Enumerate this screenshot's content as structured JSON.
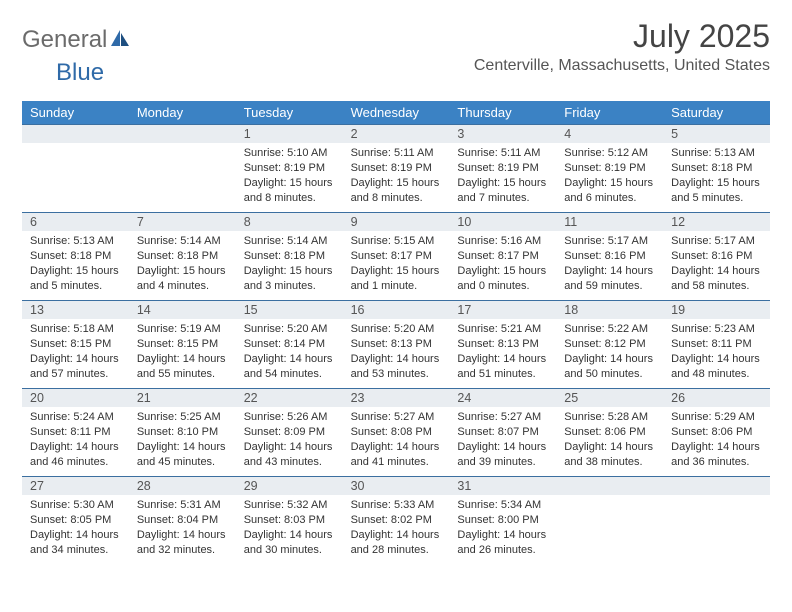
{
  "logo": {
    "text1": "General",
    "text2": "Blue",
    "text1_color": "#6b6b6b",
    "text2_color": "#2f6aa8"
  },
  "header": {
    "month_title": "July 2025",
    "location": "Centerville, Massachusetts, United States"
  },
  "colors": {
    "header_bg": "#3b82c4",
    "header_text": "#ffffff",
    "daynum_bg": "#e9edf1",
    "border": "#3b6fa0"
  },
  "day_labels": [
    "Sunday",
    "Monday",
    "Tuesday",
    "Wednesday",
    "Thursday",
    "Friday",
    "Saturday"
  ],
  "weeks": [
    [
      {
        "day": "",
        "sunrise": "",
        "sunset": "",
        "daylight1": "",
        "daylight2": ""
      },
      {
        "day": "",
        "sunrise": "",
        "sunset": "",
        "daylight1": "",
        "daylight2": ""
      },
      {
        "day": "1",
        "sunrise": "Sunrise: 5:10 AM",
        "sunset": "Sunset: 8:19 PM",
        "daylight1": "Daylight: 15 hours",
        "daylight2": "and 8 minutes."
      },
      {
        "day": "2",
        "sunrise": "Sunrise: 5:11 AM",
        "sunset": "Sunset: 8:19 PM",
        "daylight1": "Daylight: 15 hours",
        "daylight2": "and 8 minutes."
      },
      {
        "day": "3",
        "sunrise": "Sunrise: 5:11 AM",
        "sunset": "Sunset: 8:19 PM",
        "daylight1": "Daylight: 15 hours",
        "daylight2": "and 7 minutes."
      },
      {
        "day": "4",
        "sunrise": "Sunrise: 5:12 AM",
        "sunset": "Sunset: 8:19 PM",
        "daylight1": "Daylight: 15 hours",
        "daylight2": "and 6 minutes."
      },
      {
        "day": "5",
        "sunrise": "Sunrise: 5:13 AM",
        "sunset": "Sunset: 8:18 PM",
        "daylight1": "Daylight: 15 hours",
        "daylight2": "and 5 minutes."
      }
    ],
    [
      {
        "day": "6",
        "sunrise": "Sunrise: 5:13 AM",
        "sunset": "Sunset: 8:18 PM",
        "daylight1": "Daylight: 15 hours",
        "daylight2": "and 5 minutes."
      },
      {
        "day": "7",
        "sunrise": "Sunrise: 5:14 AM",
        "sunset": "Sunset: 8:18 PM",
        "daylight1": "Daylight: 15 hours",
        "daylight2": "and 4 minutes."
      },
      {
        "day": "8",
        "sunrise": "Sunrise: 5:14 AM",
        "sunset": "Sunset: 8:18 PM",
        "daylight1": "Daylight: 15 hours",
        "daylight2": "and 3 minutes."
      },
      {
        "day": "9",
        "sunrise": "Sunrise: 5:15 AM",
        "sunset": "Sunset: 8:17 PM",
        "daylight1": "Daylight: 15 hours",
        "daylight2": "and 1 minute."
      },
      {
        "day": "10",
        "sunrise": "Sunrise: 5:16 AM",
        "sunset": "Sunset: 8:17 PM",
        "daylight1": "Daylight: 15 hours",
        "daylight2": "and 0 minutes."
      },
      {
        "day": "11",
        "sunrise": "Sunrise: 5:17 AM",
        "sunset": "Sunset: 8:16 PM",
        "daylight1": "Daylight: 14 hours",
        "daylight2": "and 59 minutes."
      },
      {
        "day": "12",
        "sunrise": "Sunrise: 5:17 AM",
        "sunset": "Sunset: 8:16 PM",
        "daylight1": "Daylight: 14 hours",
        "daylight2": "and 58 minutes."
      }
    ],
    [
      {
        "day": "13",
        "sunrise": "Sunrise: 5:18 AM",
        "sunset": "Sunset: 8:15 PM",
        "daylight1": "Daylight: 14 hours",
        "daylight2": "and 57 minutes."
      },
      {
        "day": "14",
        "sunrise": "Sunrise: 5:19 AM",
        "sunset": "Sunset: 8:15 PM",
        "daylight1": "Daylight: 14 hours",
        "daylight2": "and 55 minutes."
      },
      {
        "day": "15",
        "sunrise": "Sunrise: 5:20 AM",
        "sunset": "Sunset: 8:14 PM",
        "daylight1": "Daylight: 14 hours",
        "daylight2": "and 54 minutes."
      },
      {
        "day": "16",
        "sunrise": "Sunrise: 5:20 AM",
        "sunset": "Sunset: 8:13 PM",
        "daylight1": "Daylight: 14 hours",
        "daylight2": "and 53 minutes."
      },
      {
        "day": "17",
        "sunrise": "Sunrise: 5:21 AM",
        "sunset": "Sunset: 8:13 PM",
        "daylight1": "Daylight: 14 hours",
        "daylight2": "and 51 minutes."
      },
      {
        "day": "18",
        "sunrise": "Sunrise: 5:22 AM",
        "sunset": "Sunset: 8:12 PM",
        "daylight1": "Daylight: 14 hours",
        "daylight2": "and 50 minutes."
      },
      {
        "day": "19",
        "sunrise": "Sunrise: 5:23 AM",
        "sunset": "Sunset: 8:11 PM",
        "daylight1": "Daylight: 14 hours",
        "daylight2": "and 48 minutes."
      }
    ],
    [
      {
        "day": "20",
        "sunrise": "Sunrise: 5:24 AM",
        "sunset": "Sunset: 8:11 PM",
        "daylight1": "Daylight: 14 hours",
        "daylight2": "and 46 minutes."
      },
      {
        "day": "21",
        "sunrise": "Sunrise: 5:25 AM",
        "sunset": "Sunset: 8:10 PM",
        "daylight1": "Daylight: 14 hours",
        "daylight2": "and 45 minutes."
      },
      {
        "day": "22",
        "sunrise": "Sunrise: 5:26 AM",
        "sunset": "Sunset: 8:09 PM",
        "daylight1": "Daylight: 14 hours",
        "daylight2": "and 43 minutes."
      },
      {
        "day": "23",
        "sunrise": "Sunrise: 5:27 AM",
        "sunset": "Sunset: 8:08 PM",
        "daylight1": "Daylight: 14 hours",
        "daylight2": "and 41 minutes."
      },
      {
        "day": "24",
        "sunrise": "Sunrise: 5:27 AM",
        "sunset": "Sunset: 8:07 PM",
        "daylight1": "Daylight: 14 hours",
        "daylight2": "and 39 minutes."
      },
      {
        "day": "25",
        "sunrise": "Sunrise: 5:28 AM",
        "sunset": "Sunset: 8:06 PM",
        "daylight1": "Daylight: 14 hours",
        "daylight2": "and 38 minutes."
      },
      {
        "day": "26",
        "sunrise": "Sunrise: 5:29 AM",
        "sunset": "Sunset: 8:06 PM",
        "daylight1": "Daylight: 14 hours",
        "daylight2": "and 36 minutes."
      }
    ],
    [
      {
        "day": "27",
        "sunrise": "Sunrise: 5:30 AM",
        "sunset": "Sunset: 8:05 PM",
        "daylight1": "Daylight: 14 hours",
        "daylight2": "and 34 minutes."
      },
      {
        "day": "28",
        "sunrise": "Sunrise: 5:31 AM",
        "sunset": "Sunset: 8:04 PM",
        "daylight1": "Daylight: 14 hours",
        "daylight2": "and 32 minutes."
      },
      {
        "day": "29",
        "sunrise": "Sunrise: 5:32 AM",
        "sunset": "Sunset: 8:03 PM",
        "daylight1": "Daylight: 14 hours",
        "daylight2": "and 30 minutes."
      },
      {
        "day": "30",
        "sunrise": "Sunrise: 5:33 AM",
        "sunset": "Sunset: 8:02 PM",
        "daylight1": "Daylight: 14 hours",
        "daylight2": "and 28 minutes."
      },
      {
        "day": "31",
        "sunrise": "Sunrise: 5:34 AM",
        "sunset": "Sunset: 8:00 PM",
        "daylight1": "Daylight: 14 hours",
        "daylight2": "and 26 minutes."
      },
      {
        "day": "",
        "sunrise": "",
        "sunset": "",
        "daylight1": "",
        "daylight2": ""
      },
      {
        "day": "",
        "sunrise": "",
        "sunset": "",
        "daylight1": "",
        "daylight2": ""
      }
    ]
  ]
}
